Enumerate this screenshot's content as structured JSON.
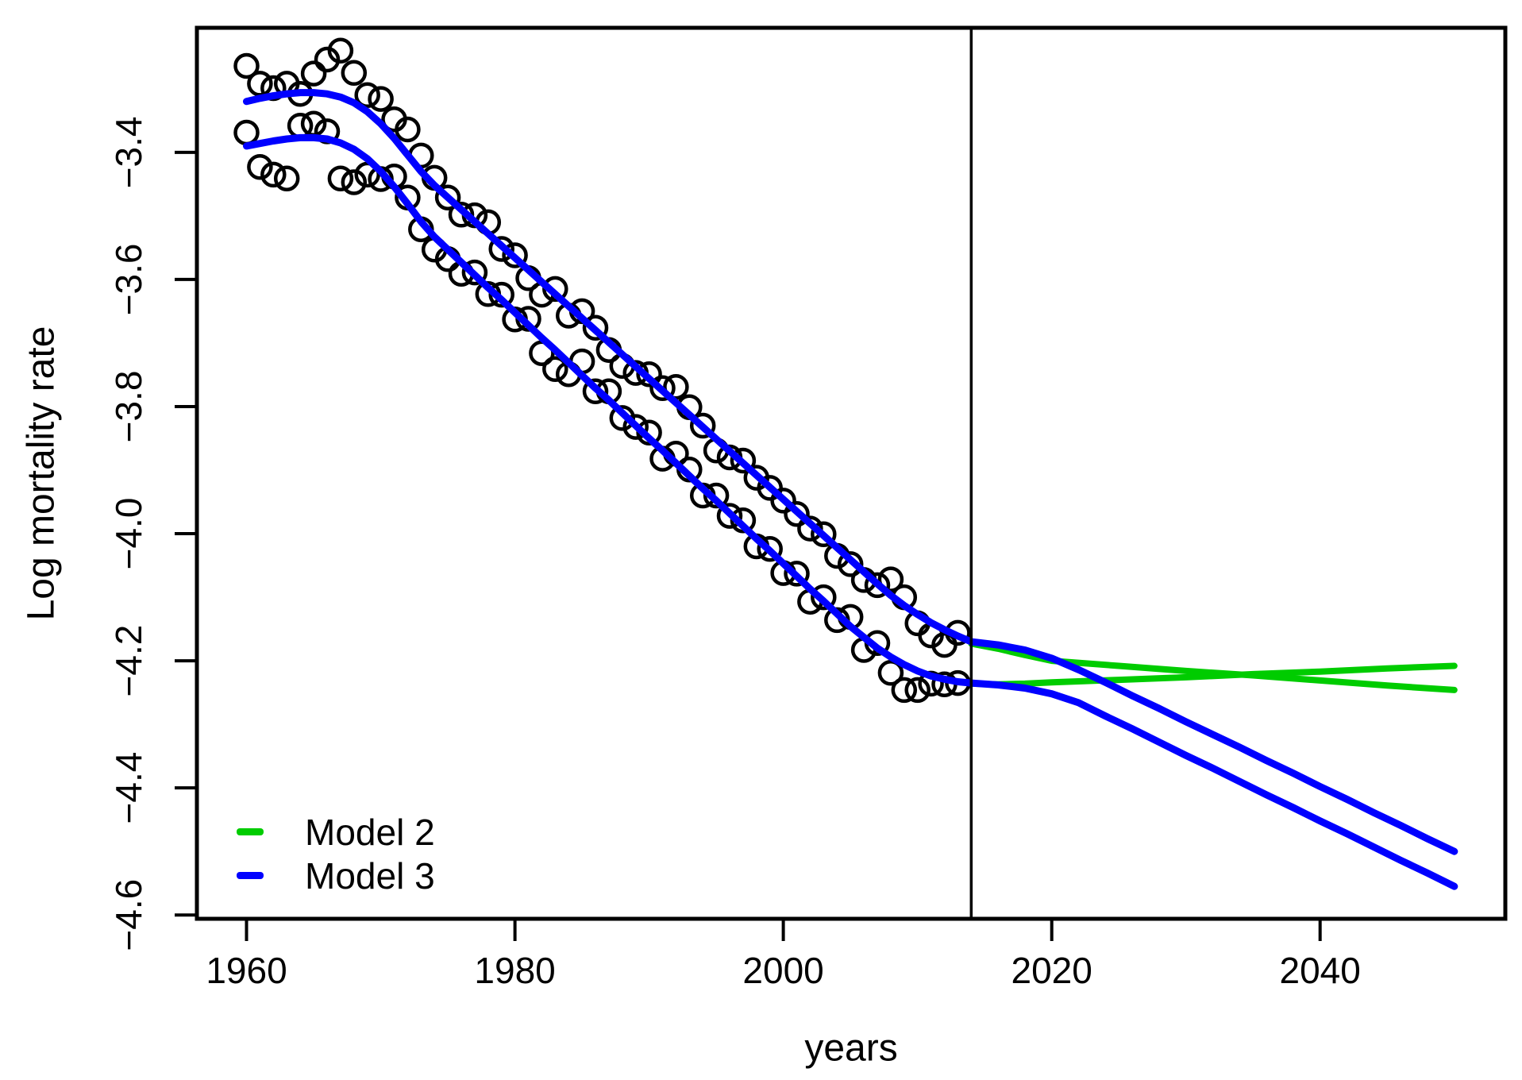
{
  "chart_data": {
    "type": "scatter",
    "title": "",
    "xlabel": "years",
    "ylabel": "Log mortality rate",
    "xlim": [
      1956.3,
      2053.8
    ],
    "ylim": [
      -4.606,
      -3.204
    ],
    "grid": false,
    "legend_position": "bottom-left-inside",
    "x_ticks": [
      {
        "v": 1960,
        "label": "1960"
      },
      {
        "v": 1980,
        "label": "1980"
      },
      {
        "v": 2000,
        "label": "2000"
      },
      {
        "v": 2020,
        "label": "2020"
      },
      {
        "v": 2040,
        "label": "2040"
      }
    ],
    "y_ticks": [
      {
        "v": -3.4,
        "label": "−3.4"
      },
      {
        "v": -3.6,
        "label": "−3.6"
      },
      {
        "v": -3.8,
        "label": "−3.8"
      },
      {
        "v": -4.0,
        "label": "−4.0"
      },
      {
        "v": -4.2,
        "label": "−4.2"
      },
      {
        "v": -4.4,
        "label": "−4.4"
      },
      {
        "v": -4.6,
        "label": "−4.6"
      }
    ],
    "vertical_line_x": 2014,
    "colors": {
      "model2": "#00CC00",
      "model3": "#0000FF",
      "points": "#000000",
      "axis": "#000000",
      "vertical_line": "#000000"
    },
    "legend": [
      {
        "label": "Model 2",
        "color": "#00CC00"
      },
      {
        "label": "Model 3",
        "color": "#0000FF"
      }
    ],
    "observed": {
      "years": [
        1960,
        1961,
        1962,
        1963,
        1964,
        1965,
        1966,
        1967,
        1968,
        1969,
        1970,
        1971,
        1972,
        1973,
        1974,
        1975,
        1976,
        1977,
        1978,
        1979,
        1980,
        1981,
        1982,
        1983,
        1984,
        1985,
        1986,
        1987,
        1988,
        1989,
        1990,
        1991,
        1992,
        1993,
        1994,
        1995,
        1996,
        1997,
        1998,
        1999,
        2000,
        2001,
        2002,
        2003,
        2004,
        2005,
        2006,
        2007,
        2008,
        2009,
        2010,
        2011,
        2012,
        2013
      ],
      "series_upper": [
        -3.264,
        -3.292,
        -3.299,
        -3.292,
        -3.308,
        -3.276,
        -3.254,
        -3.24,
        -3.275,
        -3.31,
        -3.316,
        -3.348,
        -3.364,
        -3.405,
        -3.44,
        -3.471,
        -3.498,
        -3.499,
        -3.51,
        -3.552,
        -3.562,
        -3.598,
        -3.624,
        -3.615,
        -3.657,
        -3.65,
        -3.676,
        -3.711,
        -3.736,
        -3.747,
        -3.749,
        -3.771,
        -3.769,
        -3.801,
        -3.83,
        -3.869,
        -3.88,
        -3.885,
        -3.912,
        -3.928,
        -3.948,
        -3.969,
        -3.992,
        -4.001,
        -4.035,
        -4.048,
        -4.073,
        -4.081,
        -4.072,
        -4.1,
        -4.141,
        -4.16,
        -4.175,
        -4.156
      ],
      "series_lower": [
        -3.369,
        -3.423,
        -3.435,
        -3.441,
        -3.358,
        -3.355,
        -3.367,
        -3.441,
        -3.447,
        -3.435,
        -3.442,
        -3.438,
        -3.471,
        -3.521,
        -3.553,
        -3.568,
        -3.591,
        -3.589,
        -3.623,
        -3.624,
        -3.663,
        -3.662,
        -3.716,
        -3.741,
        -3.749,
        -3.729,
        -3.776,
        -3.776,
        -3.818,
        -3.832,
        -3.841,
        -3.882,
        -3.874,
        -3.899,
        -3.94,
        -3.94,
        -3.972,
        -3.979,
        -4.02,
        -4.024,
        -4.062,
        -4.063,
        -4.107,
        -4.1,
        -4.136,
        -4.131,
        -4.183,
        -4.172,
        -4.219,
        -4.246,
        -4.246,
        -4.236,
        -4.237,
        -4.235
      ]
    },
    "model3": {
      "fit_years": [
        1960,
        1961,
        1962,
        1963,
        1964,
        1965,
        1966,
        1967,
        1968,
        1969,
        1970,
        1971,
        1972,
        1973,
        1974,
        1975,
        1976,
        1977,
        1978,
        1979,
        1980,
        1981,
        1982,
        1983,
        1984,
        1985,
        1986,
        1987,
        1988,
        1989,
        1990,
        1991,
        1992,
        1993,
        1994,
        1995,
        1996,
        1997,
        1998,
        1999,
        2000,
        2001,
        2002,
        2003,
        2004,
        2005,
        2006,
        2007,
        2008,
        2009,
        2010,
        2011,
        2012,
        2013,
        2014
      ],
      "fit_upper": [
        -3.32,
        -3.315,
        -3.311,
        -3.308,
        -3.306,
        -3.306,
        -3.308,
        -3.313,
        -3.322,
        -3.336,
        -3.355,
        -3.378,
        -3.404,
        -3.43,
        -3.452,
        -3.471,
        -3.49,
        -3.509,
        -3.528,
        -3.547,
        -3.566,
        -3.585,
        -3.604,
        -3.623,
        -3.642,
        -3.661,
        -3.68,
        -3.699,
        -3.718,
        -3.737,
        -3.756,
        -3.775,
        -3.794,
        -3.813,
        -3.832,
        -3.851,
        -3.87,
        -3.889,
        -3.908,
        -3.927,
        -3.946,
        -3.965,
        -3.984,
        -4.003,
        -4.022,
        -4.041,
        -4.06,
        -4.079,
        -4.097,
        -4.113,
        -4.127,
        -4.14,
        -4.151,
        -4.161,
        -4.17
      ],
      "fit_lower": [
        -3.39,
        -3.386,
        -3.382,
        -3.379,
        -3.377,
        -3.377,
        -3.379,
        -3.385,
        -3.395,
        -3.41,
        -3.43,
        -3.454,
        -3.481,
        -3.509,
        -3.533,
        -3.553,
        -3.573,
        -3.593,
        -3.613,
        -3.632,
        -3.652,
        -3.672,
        -3.692,
        -3.711,
        -3.731,
        -3.751,
        -3.771,
        -3.79,
        -3.81,
        -3.83,
        -3.85,
        -3.869,
        -3.889,
        -3.909,
        -3.929,
        -3.948,
        -3.968,
        -3.988,
        -4.008,
        -4.027,
        -4.047,
        -4.067,
        -4.087,
        -4.106,
        -4.126,
        -4.146,
        -4.163,
        -4.18,
        -4.194,
        -4.206,
        -4.216,
        -4.224,
        -4.229,
        -4.233,
        -4.235
      ],
      "forecast_years": [
        2014,
        2016,
        2018,
        2020,
        2022,
        2024,
        2026,
        2028,
        2030,
        2032,
        2034,
        2036,
        2038,
        2040,
        2042,
        2044,
        2046,
        2048,
        2050
      ],
      "forecast_upper": [
        -4.17,
        -4.175,
        -4.183,
        -4.196,
        -4.214,
        -4.234,
        -4.255,
        -4.275,
        -4.296,
        -4.316,
        -4.336,
        -4.357,
        -4.377,
        -4.398,
        -4.418,
        -4.439,
        -4.459,
        -4.48,
        -4.5
      ],
      "forecast_lower": [
        -4.235,
        -4.238,
        -4.243,
        -4.252,
        -4.266,
        -4.287,
        -4.307,
        -4.328,
        -4.349,
        -4.369,
        -4.39,
        -4.411,
        -4.431,
        -4.452,
        -4.472,
        -4.493,
        -4.514,
        -4.534,
        -4.555
      ]
    },
    "model2": {
      "forecast_years": [
        2014,
        2016,
        2018,
        2020,
        2025,
        2030,
        2035,
        2040,
        2045,
        2050
      ],
      "forecast_upper": [
        -4.173,
        -4.181,
        -4.191,
        -4.2,
        -4.208,
        -4.216,
        -4.223,
        -4.231,
        -4.239,
        -4.246
      ],
      "forecast_lower": [
        -4.236,
        -4.237,
        -4.236,
        -4.234,
        -4.23,
        -4.226,
        -4.221,
        -4.217,
        -4.212,
        -4.208
      ]
    }
  }
}
